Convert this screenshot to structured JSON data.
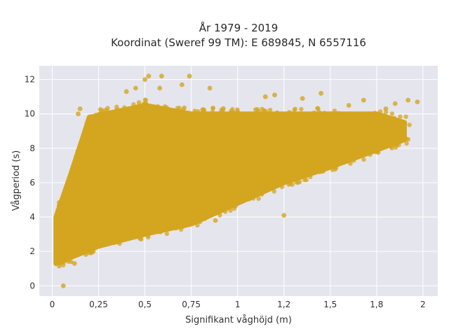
{
  "chart_data": {
    "type": "scatter",
    "title_line1": "År 1979 - 2019",
    "title_line2": "Koordinat (Sweref 99 TM): E 689845, N 6557116",
    "xlabel": "Signifikant våghöjd (m)",
    "ylabel": "Vågperiod (s)",
    "xlim": [
      -0.07,
      2.08
    ],
    "ylim": [
      -0.6,
      12.8
    ],
    "x_ticks": [
      {
        "v": 0,
        "label": "0"
      },
      {
        "v": 0.25,
        "label": "0,25"
      },
      {
        "v": 0.5,
        "label": "0,5"
      },
      {
        "v": 0.75,
        "label": "0,75"
      },
      {
        "v": 1,
        "label": "1"
      },
      {
        "v": 1.25,
        "label": "1,2"
      },
      {
        "v": 1.5,
        "label": "1,5"
      },
      {
        "v": 1.75,
        "label": "1,8"
      },
      {
        "v": 2,
        "label": "2"
      }
    ],
    "y_ticks": [
      {
        "v": 0,
        "label": "0"
      },
      {
        "v": 2,
        "label": "2"
      },
      {
        "v": 4,
        "label": "4"
      },
      {
        "v": 6,
        "label": "6"
      },
      {
        "v": 8,
        "label": "8"
      },
      {
        "v": 10,
        "label": "10"
      },
      {
        "v": 12,
        "label": "12"
      }
    ],
    "grid": true,
    "marker_color": "#D4A51F",
    "plot_bg": "#E5E5EE",
    "point_cloud": {
      "lower_edge": [
        [
          0.02,
          1.3
        ],
        [
          0.25,
          2.3
        ],
        [
          0.5,
          3.0
        ],
        [
          0.75,
          3.6
        ],
        [
          1.0,
          4.8
        ],
        [
          1.25,
          6.0
        ],
        [
          1.5,
          6.9
        ],
        [
          1.75,
          7.9
        ],
        [
          1.9,
          8.5
        ]
      ],
      "upper_edge": [
        [
          0.02,
          4.0
        ],
        [
          0.1,
          6.5
        ],
        [
          0.2,
          9.8
        ],
        [
          0.5,
          10.5
        ],
        [
          0.75,
          10.0
        ],
        [
          1.0,
          10.0
        ],
        [
          1.25,
          10.0
        ],
        [
          1.5,
          10.0
        ],
        [
          1.75,
          10.0
        ],
        [
          1.9,
          9.5
        ]
      ]
    },
    "sample_points": [
      [
        0.06,
        0.0
      ],
      [
        0.52,
        12.2
      ],
      [
        0.59,
        12.2
      ],
      [
        0.74,
        12.2
      ],
      [
        0.5,
        12.0
      ],
      [
        0.7,
        11.7
      ],
      [
        0.58,
        11.5
      ],
      [
        0.85,
        11.5
      ],
      [
        0.45,
        11.5
      ],
      [
        0.4,
        11.3
      ],
      [
        1.45,
        11.2
      ],
      [
        1.2,
        11.1
      ],
      [
        1.15,
        11.0
      ],
      [
        1.35,
        10.9
      ],
      [
        1.68,
        10.8
      ],
      [
        1.92,
        10.8
      ],
      [
        1.97,
        10.7
      ],
      [
        1.85,
        10.6
      ],
      [
        1.6,
        10.5
      ],
      [
        1.8,
        10.3
      ],
      [
        0.15,
        10.3
      ],
      [
        0.14,
        10.0
      ],
      [
        1.25,
        4.1
      ],
      [
        0.88,
        3.8
      ],
      [
        0.03,
        2.8
      ],
      [
        0.03,
        2.2
      ],
      [
        0.04,
        1.8
      ],
      [
        0.1,
        1.4
      ],
      [
        0.12,
        1.3
      ],
      [
        1.05,
        9.0
      ]
    ]
  }
}
